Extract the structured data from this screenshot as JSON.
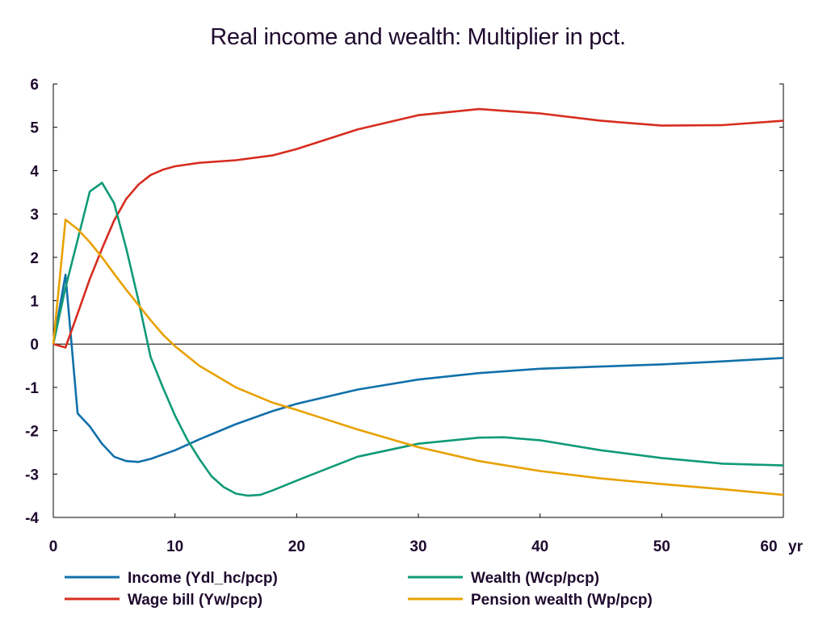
{
  "chart_data": {
    "type": "line",
    "title": "Real income and wealth: Multiplier in pct.",
    "xlabel": "",
    "ylabel": "",
    "x_unit_label": "yr",
    "xlim": [
      0,
      60
    ],
    "ylim": [
      -4,
      6
    ],
    "x_ticks": [
      0,
      10,
      20,
      30,
      40,
      50,
      60
    ],
    "y_ticks": [
      6,
      5,
      4,
      3,
      2,
      1,
      0,
      -1,
      -2,
      -3,
      -4
    ],
    "grid": false,
    "zero_line": true,
    "legend_position": "bottom",
    "series": [
      {
        "name": "Income (Ydl_hc/pcp)",
        "color": "#1170aa",
        "points": [
          [
            0,
            0
          ],
          [
            1,
            1.6
          ],
          [
            2,
            -1.6
          ],
          [
            3,
            -1.9
          ],
          [
            4,
            -2.3
          ],
          [
            5,
            -2.6
          ],
          [
            6,
            -2.7
          ],
          [
            7,
            -2.72
          ],
          [
            8,
            -2.65
          ],
          [
            10,
            -2.45
          ],
          [
            12,
            -2.2
          ],
          [
            15,
            -1.85
          ],
          [
            18,
            -1.55
          ],
          [
            20,
            -1.38
          ],
          [
            25,
            -1.05
          ],
          [
            30,
            -0.82
          ],
          [
            35,
            -0.67
          ],
          [
            40,
            -0.57
          ],
          [
            45,
            -0.52
          ],
          [
            50,
            -0.47
          ],
          [
            55,
            -0.4
          ],
          [
            60,
            -0.32
          ]
        ]
      },
      {
        "name": "Wage bill (Yw/pcp)",
        "color": "#d62d20",
        "points": [
          [
            0,
            0
          ],
          [
            1,
            -0.08
          ],
          [
            2,
            0.7
          ],
          [
            3,
            1.5
          ],
          [
            4,
            2.2
          ],
          [
            5,
            2.85
          ],
          [
            6,
            3.35
          ],
          [
            7,
            3.68
          ],
          [
            8,
            3.9
          ],
          [
            9,
            4.02
          ],
          [
            10,
            4.1
          ],
          [
            12,
            4.18
          ],
          [
            15,
            4.24
          ],
          [
            18,
            4.35
          ],
          [
            20,
            4.5
          ],
          [
            25,
            4.95
          ],
          [
            30,
            5.28
          ],
          [
            35,
            5.42
          ],
          [
            40,
            5.32
          ],
          [
            45,
            5.15
          ],
          [
            50,
            5.04
          ],
          [
            55,
            5.05
          ],
          [
            60,
            5.15
          ]
        ]
      },
      {
        "name": "Wealth (Wcp/pcp)",
        "color": "#0f9a77",
        "points": [
          [
            0,
            0
          ],
          [
            1,
            1.3
          ],
          [
            2,
            2.4
          ],
          [
            3,
            3.52
          ],
          [
            4,
            3.72
          ],
          [
            5,
            3.25
          ],
          [
            6,
            2.2
          ],
          [
            7,
            1.0
          ],
          [
            8,
            -0.3
          ],
          [
            9,
            -1.0
          ],
          [
            10,
            -1.65
          ],
          [
            11,
            -2.2
          ],
          [
            12,
            -2.65
          ],
          [
            13,
            -3.05
          ],
          [
            14,
            -3.3
          ],
          [
            15,
            -3.45
          ],
          [
            16,
            -3.5
          ],
          [
            17,
            -3.48
          ],
          [
            18,
            -3.38
          ],
          [
            20,
            -3.15
          ],
          [
            25,
            -2.6
          ],
          [
            30,
            -2.3
          ],
          [
            35,
            -2.16
          ],
          [
            37,
            -2.15
          ],
          [
            40,
            -2.22
          ],
          [
            45,
            -2.45
          ],
          [
            50,
            -2.63
          ],
          [
            55,
            -2.76
          ],
          [
            60,
            -2.8
          ]
        ]
      },
      {
        "name": "Pension wealth (Wp/pcp)",
        "color": "#e8a100",
        "points": [
          [
            0,
            0
          ],
          [
            1,
            2.87
          ],
          [
            2,
            2.65
          ],
          [
            3,
            2.35
          ],
          [
            4,
            2.0
          ],
          [
            5,
            1.62
          ],
          [
            6,
            1.25
          ],
          [
            7,
            0.9
          ],
          [
            8,
            0.55
          ],
          [
            9,
            0.22
          ],
          [
            10,
            -0.05
          ],
          [
            12,
            -0.5
          ],
          [
            15,
            -1.0
          ],
          [
            18,
            -1.35
          ],
          [
            20,
            -1.52
          ],
          [
            25,
            -1.97
          ],
          [
            30,
            -2.38
          ],
          [
            35,
            -2.7
          ],
          [
            40,
            -2.93
          ],
          [
            45,
            -3.1
          ],
          [
            50,
            -3.23
          ],
          [
            55,
            -3.35
          ],
          [
            60,
            -3.48
          ]
        ]
      }
    ]
  }
}
